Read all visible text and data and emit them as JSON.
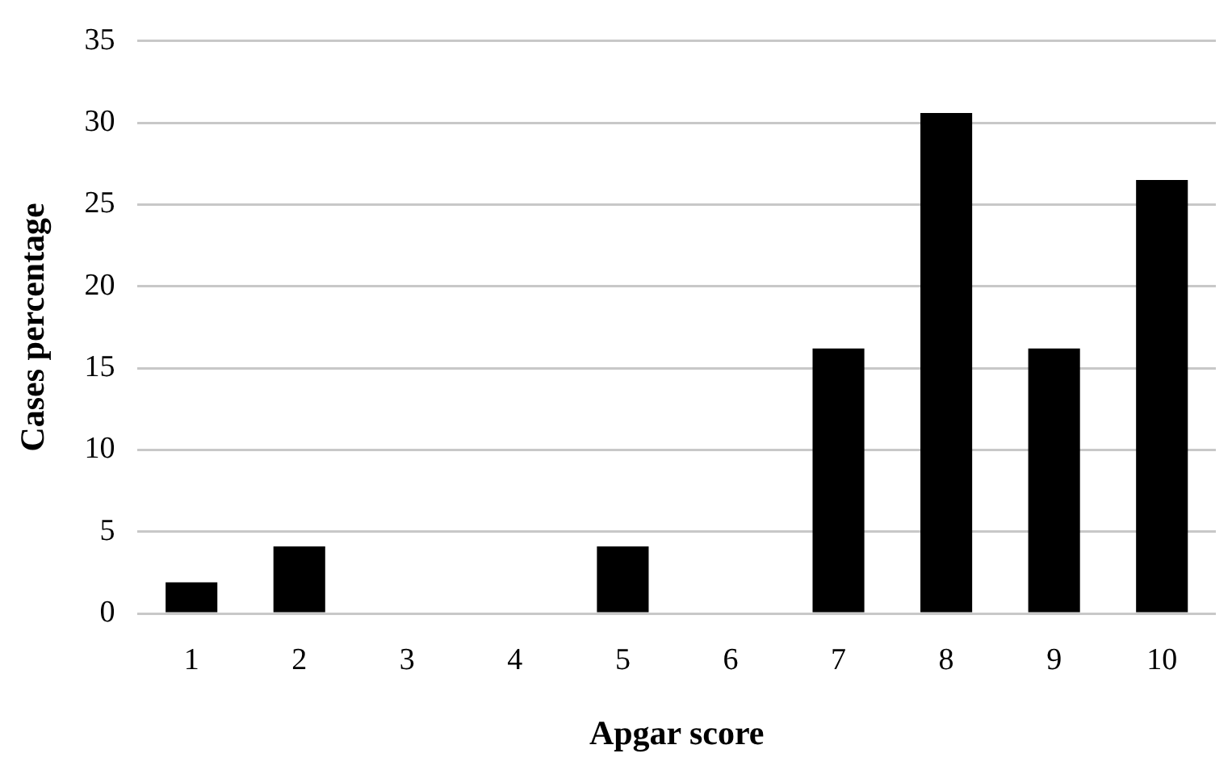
{
  "chart_data": {
    "type": "bar",
    "xlabel": "Apgar score",
    "ylabel": "Cases percentage",
    "categories": [
      "1",
      "2",
      "3",
      "4",
      "5",
      "6",
      "7",
      "8",
      "9",
      "10"
    ],
    "values": [
      1.9,
      4.1,
      0,
      0,
      4.1,
      0,
      16.2,
      30.6,
      16.2,
      26.5
    ],
    "color": "#000000",
    "ylim": [
      0,
      35
    ],
    "yticks": [
      0,
      5,
      10,
      15,
      20,
      25,
      30,
      35
    ],
    "grid": "y",
    "legend": false
  }
}
